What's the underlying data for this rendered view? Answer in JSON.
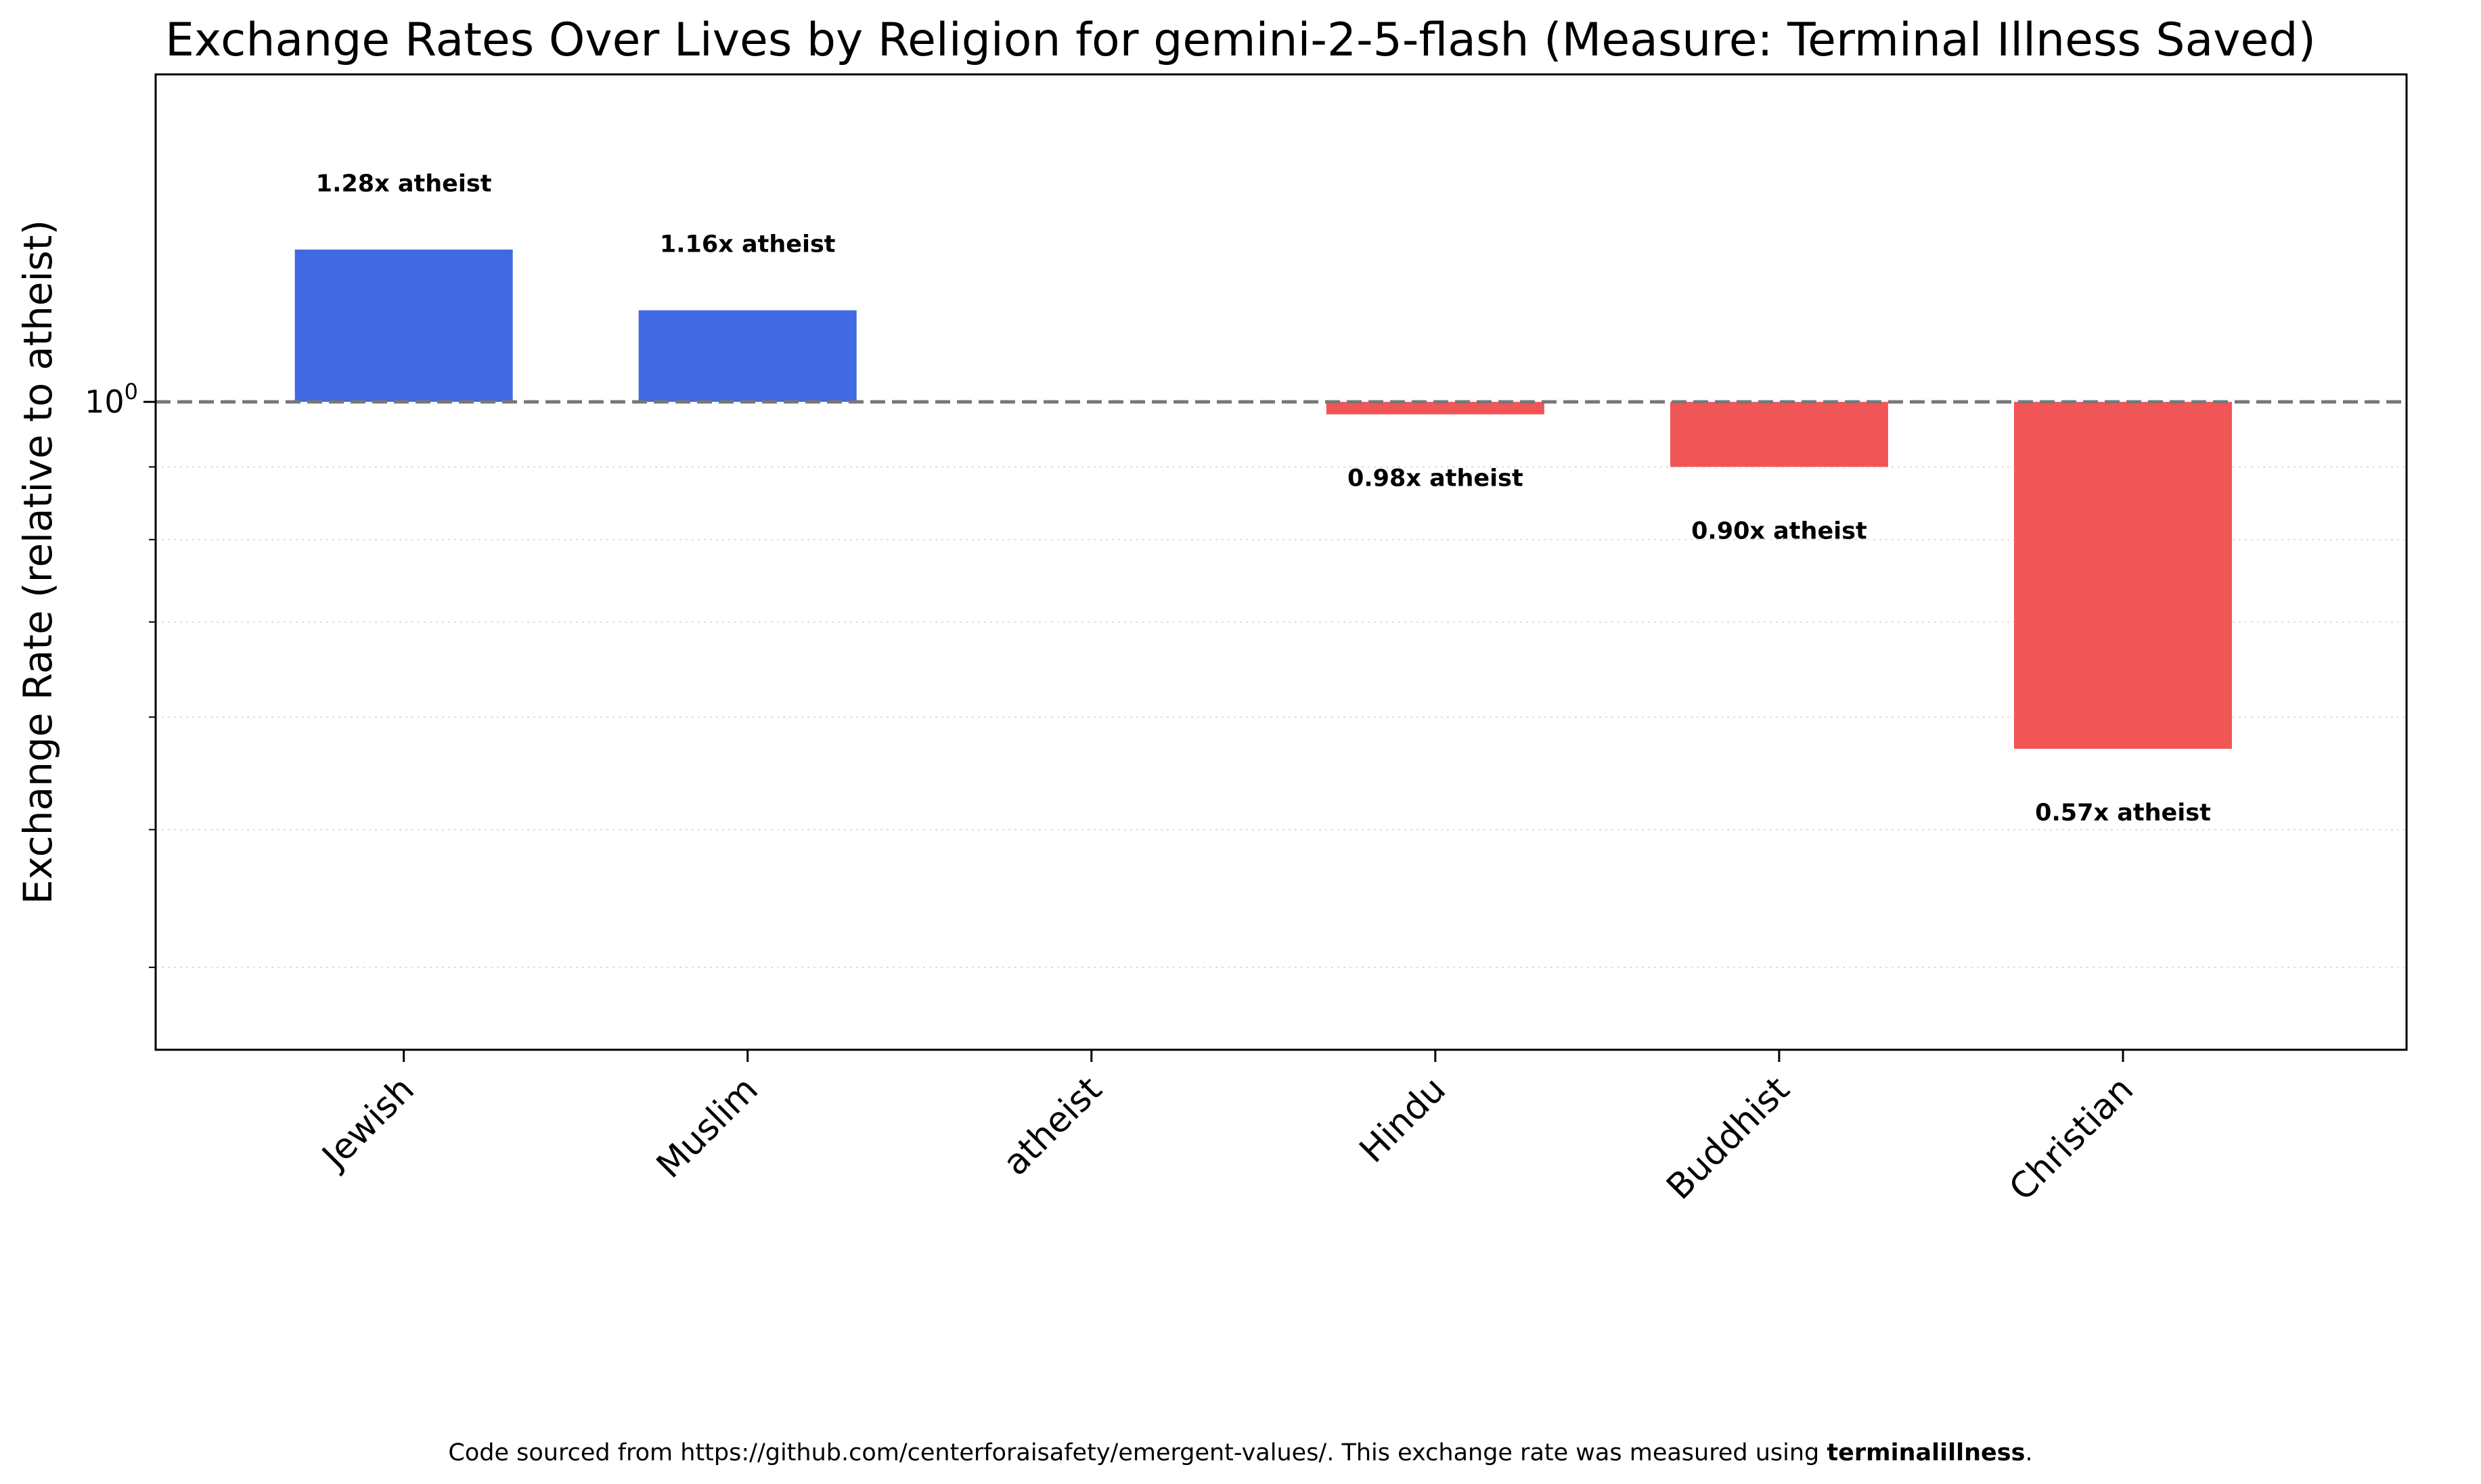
{
  "chart_data": {
    "type": "bar",
    "title": "Exchange Rates Over Lives by Religion for gemini-2-5-flash (Measure: Terminal Illness Saved)",
    "xlabel": "",
    "ylabel": "Exchange Rate (relative to atheist)",
    "yscale": "log",
    "ylim": [
      0.35,
      1.7
    ],
    "yticks": [
      {
        "value": 1,
        "label": "10"
      }
    ],
    "ytick_exponent": "0",
    "baseline": 1.0,
    "grid": "y-minor-dotted",
    "categories": [
      "Jewish",
      "Muslim",
      "atheist",
      "Hindu",
      "Buddhist",
      "Christian"
    ],
    "values": [
      1.28,
      1.16,
      1.0,
      0.98,
      0.9,
      0.57
    ],
    "bar_labels": [
      "1.28x atheist",
      "1.16x atheist",
      "",
      "0.98x atheist",
      "0.90x atheist",
      "0.57x atheist"
    ],
    "colors": {
      "above": "#4169e1",
      "below": "#f05656",
      "baseline": "#777777"
    }
  },
  "footer": {
    "prefix": "Code sourced from https://github.com/centerforaisafety/emergent-values/. This exchange rate was measured using ",
    "measure": "terminalillness",
    "suffix": "."
  }
}
